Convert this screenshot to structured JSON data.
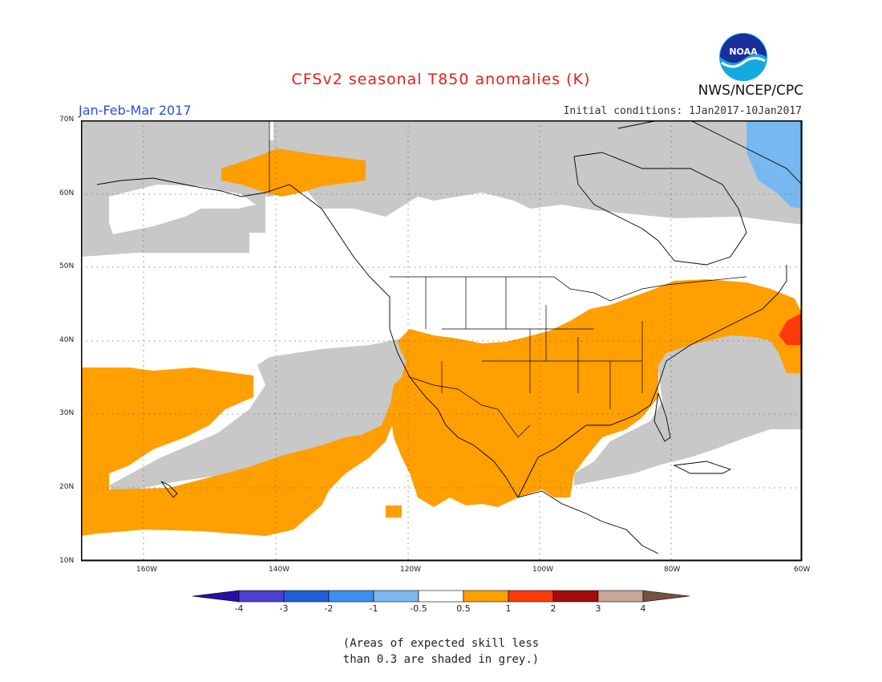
{
  "title": "CFSv2 seasonal T850 anomalies (K)",
  "period": "Jan-Feb-Mar 2017",
  "initial_conditions": "Initial conditions: 1Jan2017-10Jan2017",
  "organization": "NWS/NCEP/CPC",
  "logo_text": "NOAA",
  "lat_labels": [
    "70N",
    "60N",
    "50N",
    "40N",
    "30N",
    "20N",
    "10N"
  ],
  "lon_labels": [
    "160W",
    "140W",
    "120W",
    "100W",
    "80W",
    "60W"
  ],
  "colorbar": {
    "colors": [
      "#2a0fa5",
      "#4f3fd0",
      "#1f5fd8",
      "#3c8ff0",
      "#7cb8f0",
      "#ffffff",
      "#ff9f00",
      "#ff3a0a",
      "#a50c0c",
      "#c8a596",
      "#77513e"
    ],
    "tick_labels": [
      "-4",
      "-3",
      "-2",
      "-1",
      "-0.5",
      "0.5",
      "1",
      "2",
      "3",
      "4"
    ]
  },
  "legend": {
    "shading_colors": {
      "warm": "#ff9f00",
      "warmer": "#ff3a0a",
      "cool": "#78b8f0",
      "low_skill": "#c8c8c8",
      "neutral": "#ffffff"
    }
  },
  "note_line1": "(Areas of expected skill less",
  "note_line2": "than 0.3 are shaded in grey.)"
}
